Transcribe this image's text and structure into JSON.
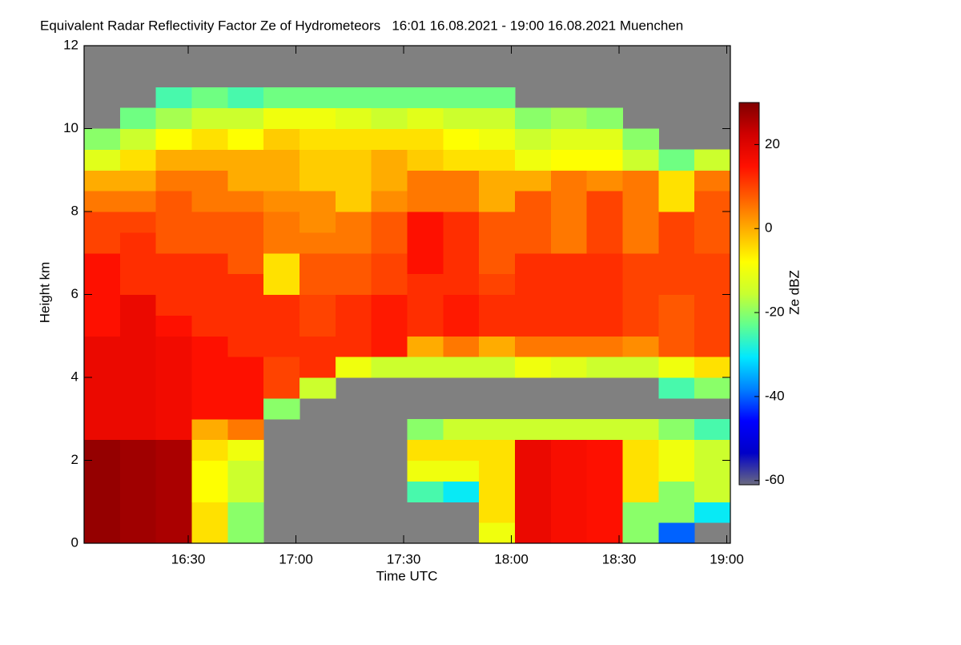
{
  "chart_data": {
    "type": "heatmap",
    "title": "Equivalent Radar Reflectivity Factor Ze of Hydrometeors   16:01 16.08.2021 - 19:00 16.08.2021 Muenchen",
    "xlabel": "Time UTC",
    "ylabel": "Height km",
    "colorbar_label": "Ze dBZ",
    "xlim": [
      961,
      1141
    ],
    "ylim": [
      0,
      12
    ],
    "clim": [
      -61,
      30
    ],
    "xticks": [
      {
        "value": 990,
        "label": "16:30"
      },
      {
        "value": 1020,
        "label": "17:00"
      },
      {
        "value": 1050,
        "label": "17:30"
      },
      {
        "value": 1080,
        "label": "18:00"
      },
      {
        "value": 1110,
        "label": "18:30"
      },
      {
        "value": 1140,
        "label": "19:00"
      }
    ],
    "yticks": [
      0,
      2,
      4,
      6,
      8,
      10,
      12
    ],
    "cticks": [
      -60,
      -40,
      -20,
      0,
      20
    ],
    "colors": [
      "#6b6b80",
      "#0000c8",
      "#0000ff",
      "#0080ff",
      "#00e8ff",
      "#60ff90",
      "#c8ff30",
      "#ffff00",
      "#ffb000",
      "#ff6000",
      "#ff1000",
      "#d00000",
      "#800000"
    ],
    "missing_color": "#808080",
    "x": [
      966,
      976,
      986,
      996,
      1006,
      1016,
      1026,
      1036,
      1046,
      1056,
      1066,
      1076,
      1086,
      1096,
      1106,
      1116,
      1126,
      1136
    ],
    "y": [
      0.25,
      0.75,
      1.25,
      1.75,
      2.25,
      2.75,
      3.25,
      3.75,
      4.25,
      4.75,
      5.25,
      5.75,
      6.25,
      6.75,
      7.25,
      7.75,
      8.25,
      8.75,
      9.25,
      9.75,
      10.25,
      10.75,
      11.25,
      11.75
    ],
    "z": [
      [
        28,
        28,
        28,
        28,
        28,
        18,
        18,
        18,
        18,
        18,
        15,
        15,
        15,
        15,
        10,
        10,
        5,
        0,
        -12,
        -20,
        null,
        null,
        null,
        null
      ],
      [
        27,
        27,
        27,
        27,
        27,
        18,
        18,
        18,
        18,
        18,
        18,
        18,
        12,
        12,
        12,
        10,
        5,
        0,
        -5,
        -15,
        -22,
        null,
        null,
        null
      ],
      [
        26,
        26,
        26,
        26,
        26,
        17,
        17,
        17,
        17,
        17,
        15,
        12,
        12,
        12,
        8,
        8,
        8,
        5,
        0,
        -8,
        -18,
        -25,
        null,
        null
      ],
      [
        -5,
        -5,
        -8,
        -8,
        -5,
        0,
        15,
        15,
        15,
        15,
        12,
        12,
        12,
        12,
        8,
        8,
        5,
        5,
        0,
        -5,
        -15,
        -22,
        null,
        null
      ],
      [
        -20,
        -20,
        -15,
        -15,
        -10,
        5,
        15,
        15,
        15,
        12,
        12,
        12,
        12,
        8,
        8,
        8,
        5,
        0,
        0,
        -8,
        -15,
        -25,
        null,
        null
      ],
      [
        null,
        null,
        null,
        null,
        null,
        null,
        -20,
        10,
        10,
        12,
        12,
        12,
        -5,
        -5,
        5,
        5,
        3,
        0,
        0,
        -3,
        -10,
        -22,
        null,
        null
      ],
      [
        null,
        null,
        null,
        null,
        null,
        null,
        null,
        -15,
        12,
        12,
        10,
        10,
        8,
        8,
        5,
        3,
        3,
        -3,
        -3,
        -5,
        -10,
        -22,
        null,
        null
      ],
      [
        null,
        null,
        null,
        null,
        null,
        null,
        null,
        null,
        -10,
        12,
        12,
        12,
        8,
        8,
        5,
        5,
        -3,
        -3,
        -3,
        -5,
        -12,
        -22,
        null,
        null
      ],
      [
        null,
        null,
        null,
        null,
        null,
        null,
        null,
        null,
        -15,
        14,
        14,
        14,
        10,
        10,
        8,
        8,
        3,
        0,
        0,
        -5,
        -15,
        -22,
        null,
        null
      ],
      [
        null,
        null,
        -25,
        -10,
        -5,
        -20,
        null,
        null,
        -15,
        0,
        12,
        12,
        12,
        15,
        15,
        15,
        5,
        5,
        -3,
        -5,
        -12,
        -22,
        null,
        null
      ],
      [
        null,
        null,
        -30,
        -10,
        -5,
        -15,
        null,
        null,
        -15,
        5,
        14,
        14,
        12,
        12,
        12,
        12,
        5,
        5,
        -5,
        -8,
        -15,
        -22,
        null,
        null
      ],
      [
        -10,
        -5,
        -5,
        -5,
        -5,
        -15,
        null,
        null,
        -15,
        0,
        12,
        12,
        10,
        8,
        8,
        8,
        0,
        0,
        -5,
        -10,
        -15,
        -22,
        null,
        null
      ],
      [
        18,
        18,
        18,
        18,
        18,
        -15,
        null,
        null,
        -10,
        5,
        12,
        12,
        12,
        12,
        8,
        8,
        8,
        0,
        -10,
        -15,
        -20,
        null,
        null,
        null
      ],
      [
        16,
        16,
        16,
        16,
        16,
        -15,
        null,
        null,
        -12,
        5,
        12,
        12,
        12,
        12,
        5,
        5,
        5,
        5,
        -8,
        -12,
        -18,
        null,
        null,
        null
      ],
      [
        15,
        15,
        15,
        15,
        15,
        -15,
        null,
        null,
        -15,
        5,
        12,
        12,
        12,
        12,
        10,
        10,
        10,
        3,
        -8,
        -12,
        -20,
        null,
        null,
        null
      ],
      [
        -20,
        -20,
        -5,
        -5,
        -5,
        -15,
        null,
        null,
        -15,
        3,
        10,
        10,
        10,
        10,
        5,
        5,
        5,
        5,
        -15,
        -20,
        null,
        null,
        null,
        null
      ],
      [
        -40,
        -20,
        -20,
        -10,
        -10,
        -20,
        null,
        -25,
        -10,
        8,
        8,
        8,
        10,
        10,
        10,
        10,
        -5,
        -5,
        -22,
        null,
        null,
        null,
        null,
        null
      ],
      [
        null,
        -30,
        -15,
        -15,
        -15,
        -25,
        null,
        -20,
        -5,
        10,
        10,
        10,
        10,
        10,
        8,
        8,
        8,
        5,
        -15,
        null,
        null,
        null,
        null,
        null
      ]
    ]
  }
}
